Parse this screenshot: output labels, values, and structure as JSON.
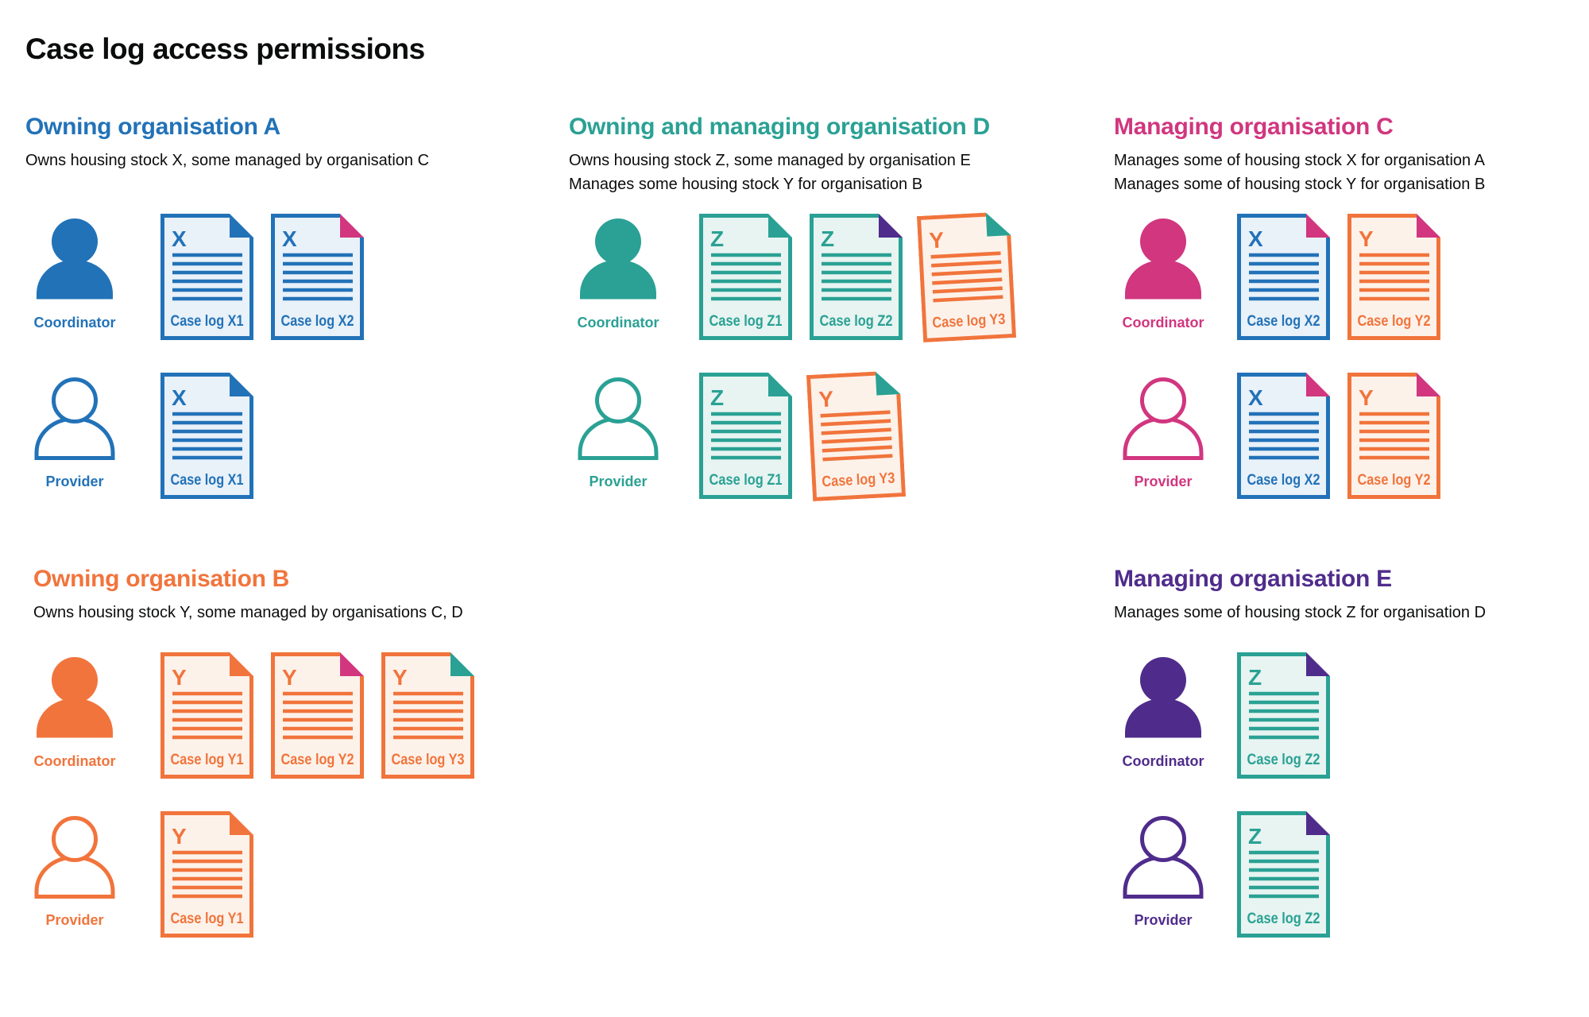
{
  "title": "Case log access permissions",
  "colors": {
    "blue": "#2272b8",
    "blue_tint": "#e9f1f9",
    "teal": "#2aa194",
    "teal_tint": "#e7f4f1",
    "orange": "#f1743c",
    "orange_tint": "#fdf2ea",
    "pink": "#d1367f",
    "purple": "#4f2c8c",
    "ink": "#0b0c0c"
  },
  "roles": {
    "coordinator": "Coordinator",
    "provider": "Provider"
  },
  "icons": {
    "coordinator": "person-filled-icon",
    "provider": "person-outline-icon",
    "document": "case-log-document-icon",
    "fold": "folded-corner-icon"
  },
  "organisations": [
    {
      "name": "Owning organisation A",
      "color": "blue",
      "description": [
        "Owns housing stock X, some managed by organisation C"
      ],
      "rows": {
        "coordinator": [
          {
            "letter": "X",
            "label": "Case log X1",
            "doc_color": "blue",
            "fold_color": "blue"
          },
          {
            "letter": "X",
            "label": "Case log X2",
            "doc_color": "blue",
            "fold_color": "pink"
          }
        ],
        "provider": [
          {
            "letter": "X",
            "label": "Case log X1",
            "doc_color": "blue",
            "fold_color": "blue"
          }
        ]
      }
    },
    {
      "name": "Owning and managing organisation D",
      "color": "teal",
      "description": [
        "Owns housing stock Z, some managed by organisation E",
        "Manages some housing stock Y for organisation B"
      ],
      "rows": {
        "coordinator": [
          {
            "letter": "Z",
            "label": "Case log Z1",
            "doc_color": "teal",
            "fold_color": "teal"
          },
          {
            "letter": "Z",
            "label": "Case log Z2",
            "doc_color": "teal",
            "fold_color": "purple"
          },
          {
            "letter": "Y",
            "label": "Case log Y3",
            "doc_color": "orange",
            "fold_color": "teal",
            "tilted": true
          }
        ],
        "provider": [
          {
            "letter": "Z",
            "label": "Case log Z1",
            "doc_color": "teal",
            "fold_color": "teal"
          },
          {
            "letter": "Y",
            "label": "Case log Y3",
            "doc_color": "orange",
            "fold_color": "teal",
            "tilted": true
          }
        ]
      }
    },
    {
      "name": "Managing organisation C",
      "color": "pink",
      "description": [
        "Manages some of housing stock X for organisation A",
        "Manages some of housing stock Y for organisation B"
      ],
      "rows": {
        "coordinator": [
          {
            "letter": "X",
            "label": "Case log X2",
            "doc_color": "blue",
            "fold_color": "pink"
          },
          {
            "letter": "Y",
            "label": "Case log Y2",
            "doc_color": "orange",
            "fold_color": "pink"
          }
        ],
        "provider": [
          {
            "letter": "X",
            "label": "Case log X2",
            "doc_color": "blue",
            "fold_color": "pink"
          },
          {
            "letter": "Y",
            "label": "Case log Y2",
            "doc_color": "orange",
            "fold_color": "pink"
          }
        ]
      }
    },
    {
      "name": "Owning organisation B",
      "color": "orange",
      "description": [
        "Owns housing stock Y, some managed by organisations C, D"
      ],
      "rows": {
        "coordinator": [
          {
            "letter": "Y",
            "label": "Case log Y1",
            "doc_color": "orange",
            "fold_color": "orange"
          },
          {
            "letter": "Y",
            "label": "Case log Y2",
            "doc_color": "orange",
            "fold_color": "pink"
          },
          {
            "letter": "Y",
            "label": "Case log Y3",
            "doc_color": "orange",
            "fold_color": "teal"
          }
        ],
        "provider": [
          {
            "letter": "Y",
            "label": "Case log Y1",
            "doc_color": "orange",
            "fold_color": "orange"
          }
        ]
      }
    },
    {
      "name": "Managing organisation E",
      "color": "purple",
      "description": [
        "Manages some of housing stock Z for organisation D"
      ],
      "rows": {
        "coordinator": [
          {
            "letter": "Z",
            "label": "Case log Z2",
            "doc_color": "teal",
            "fold_color": "purple"
          }
        ],
        "provider": [
          {
            "letter": "Z",
            "label": "Case log Z2",
            "doc_color": "teal",
            "fold_color": "purple"
          }
        ]
      }
    }
  ]
}
